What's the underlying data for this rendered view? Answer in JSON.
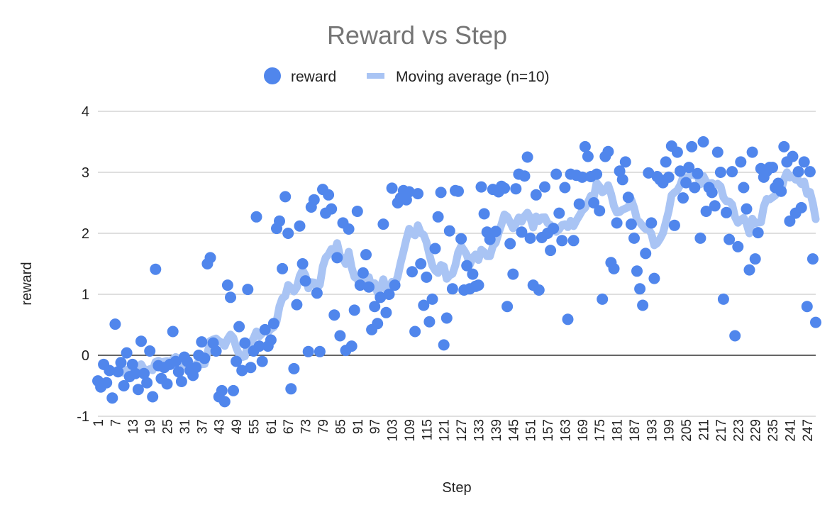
{
  "chart_data": {
    "type": "scatter",
    "title": "Reward vs Step",
    "xlabel": "Step",
    "ylabel": "reward",
    "xlim": [
      1,
      250
    ],
    "ylim": [
      -1,
      4
    ],
    "yticks": [
      -1,
      0,
      1,
      2,
      3,
      4
    ],
    "xticks": [
      1,
      7,
      13,
      19,
      25,
      31,
      37,
      43,
      49,
      55,
      61,
      67,
      73,
      79,
      85,
      91,
      97,
      103,
      109,
      115,
      121,
      127,
      133,
      139,
      145,
      151,
      157,
      163,
      169,
      175,
      181,
      187,
      193,
      199,
      205,
      211,
      217,
      223,
      229,
      235,
      241,
      247
    ],
    "grid": true,
    "legend_position": "top",
    "colors": {
      "reward": "#5086ec",
      "moving_average": "#a9c4f4",
      "title": "#757575",
      "grid": "#cccccc",
      "zero_line": "#333333"
    },
    "series": [
      {
        "name": "reward",
        "kind": "scatter",
        "values": [
          -0.42,
          -0.52,
          -0.15,
          -0.45,
          -0.25,
          -0.7,
          0.51,
          -0.27,
          -0.12,
          -0.5,
          0.04,
          -0.35,
          -0.15,
          -0.3,
          -0.56,
          0.23,
          -0.3,
          -0.45,
          0.07,
          -0.68,
          1.41,
          -0.17,
          -0.38,
          -0.2,
          -0.47,
          -0.15,
          0.39,
          -0.1,
          -0.27,
          -0.43,
          -0.03,
          -0.1,
          -0.25,
          -0.33,
          -0.2,
          0.0,
          0.22,
          -0.05,
          1.5,
          1.6,
          0.2,
          0.07,
          -0.68,
          -0.58,
          -0.76,
          1.15,
          0.95,
          -0.58,
          -0.1,
          0.47,
          -0.25,
          0.2,
          1.08,
          -0.2,
          0.07,
          2.27,
          0.15,
          -0.1,
          0.42,
          0.15,
          0.25,
          0.52,
          2.08,
          2.2,
          1.42,
          2.6,
          2.0,
          -0.55,
          -0.22,
          0.83,
          2.12,
          1.5,
          1.22,
          0.06,
          2.43,
          2.55,
          1.02,
          0.06,
          2.72,
          2.33,
          2.63,
          2.4,
          0.66,
          1.6,
          0.32,
          2.17,
          0.08,
          2.07,
          0.15,
          0.74,
          2.36,
          1.15,
          1.35,
          1.65,
          1.12,
          0.42,
          0.8,
          0.52,
          0.95,
          2.15,
          0.7,
          1.0,
          2.74,
          1.15,
          2.5,
          2.58,
          2.7,
          2.55,
          2.68,
          1.37,
          0.39,
          2.65,
          1.5,
          0.82,
          1.28,
          0.55,
          0.92,
          1.75,
          2.27,
          2.67,
          0.17,
          0.61,
          2.04,
          1.09,
          2.7,
          2.69,
          1.91,
          1.07,
          1.47,
          1.09,
          1.33,
          1.13,
          1.15,
          2.76,
          2.32,
          2.02,
          1.9,
          2.72,
          2.03,
          2.68,
          2.77,
          2.74,
          0.8,
          1.83,
          1.33,
          2.73,
          2.97,
          2.02,
          2.94,
          3.25,
          1.92,
          1.15,
          2.63,
          1.07,
          1.93,
          2.76,
          2.0,
          1.72,
          2.08,
          2.97,
          2.33,
          1.88,
          2.75,
          0.59,
          2.97,
          1.88,
          2.95,
          2.48,
          2.92,
          3.42,
          3.26,
          2.93,
          2.5,
          2.97,
          2.37,
          0.92,
          3.26,
          3.34,
          1.52,
          1.42,
          2.17,
          3.02,
          2.88,
          3.17,
          2.59,
          2.15,
          1.92,
          1.38,
          1.09,
          0.82,
          1.67,
          2.99,
          2.17,
          1.26,
          2.93,
          2.88,
          2.83,
          3.17,
          2.92,
          3.43,
          2.13,
          3.33,
          3.02,
          2.58,
          2.83,
          3.08,
          3.42,
          2.75,
          2.98,
          1.92,
          3.5,
          2.36,
          2.75,
          2.67,
          2.45,
          3.33,
          3.0,
          0.92,
          2.34,
          1.9,
          3.01,
          0.32,
          1.78,
          3.17,
          2.75,
          2.4,
          1.4,
          3.33,
          1.58,
          2.01,
          3.06,
          2.92,
          3.02,
          3.08,
          3.08,
          2.75,
          2.82,
          2.69,
          3.42,
          3.17,
          2.2,
          3.26,
          2.33,
          3.01,
          2.42,
          3.17,
          0.8,
          3.01,
          1.58,
          0.54
        ]
      },
      {
        "name": "Moving average (n=10)",
        "kind": "line",
        "window": 10
      }
    ],
    "legend": [
      {
        "label": "reward",
        "marker": "circle"
      },
      {
        "label": "Moving average (n=10)",
        "marker": "line"
      }
    ]
  }
}
